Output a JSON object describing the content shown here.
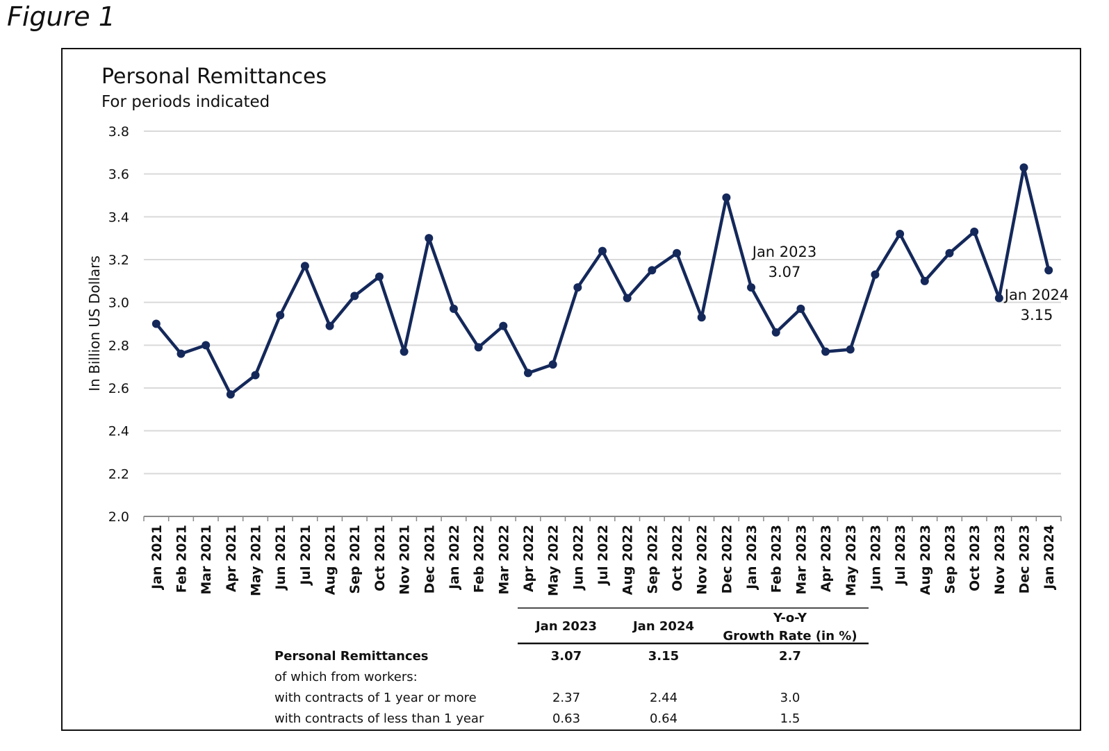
{
  "figure_label": "Figure 1",
  "chart_data": {
    "type": "line",
    "title": "Personal Remittances",
    "subtitle": "For periods indicated",
    "xlabel": "",
    "ylabel": "In Billion US Dollars",
    "ylim": [
      2.0,
      3.8
    ],
    "yticks": [
      "2.0",
      "2.2",
      "2.4",
      "2.6",
      "2.8",
      "3.0",
      "3.2",
      "3.4",
      "3.6",
      "3.8"
    ],
    "grid": true,
    "line_color": "#14285a",
    "categories": [
      "Jan 2021",
      "Feb 2021",
      "Mar 2021",
      "Apr 2021",
      "May 2021",
      "Jun 2021",
      "Jul 2021",
      "Aug 2021",
      "Sep 2021",
      "Oct 2021",
      "Nov 2021",
      "Dec 2021",
      "Jan 2022",
      "Feb 2022",
      "Mar 2022",
      "Apr 2022",
      "May 2022",
      "Jun 2022",
      "Jul 2022",
      "Aug 2022",
      "Sep 2022",
      "Oct 2022",
      "Nov 2022",
      "Dec 2022",
      "Jan 2023",
      "Feb 2023",
      "Mar 2023",
      "Apr 2023",
      "May 2023",
      "Jun 2023",
      "Jul 2023",
      "Aug 2023",
      "Sep 2023",
      "Oct 2023",
      "Nov 2023",
      "Dec 2023",
      "Jan 2024"
    ],
    "values": [
      2.9,
      2.76,
      2.8,
      2.57,
      2.66,
      2.94,
      3.17,
      2.89,
      3.03,
      3.12,
      2.77,
      3.3,
      2.97,
      2.79,
      2.89,
      2.67,
      2.71,
      3.07,
      3.24,
      3.02,
      3.15,
      3.23,
      2.93,
      3.49,
      3.07,
      2.86,
      2.97,
      2.77,
      2.78,
      3.13,
      3.32,
      3.1,
      3.23,
      3.33,
      3.02,
      3.63,
      3.15
    ],
    "annotations": [
      {
        "category": "Jan 2023",
        "line1": "Jan 2023",
        "line2": "3.07"
      },
      {
        "category": "Jan 2024",
        "line1": "Jan 2024",
        "line2": "3.15"
      }
    ]
  },
  "table": {
    "headers": [
      "Jan 2023",
      "Jan 2024",
      "Y-o-Y",
      "Growth Rate (in %)"
    ],
    "rows": [
      {
        "label": "Personal Remittances",
        "values": [
          "3.07",
          "3.15",
          "2.7"
        ],
        "bold": true
      },
      {
        "label": "of which from workers:",
        "values": [
          "",
          "",
          ""
        ],
        "bold": false
      },
      {
        "label": "with contracts of 1 year or more",
        "values": [
          "2.37",
          "2.44",
          "3.0"
        ],
        "bold": false
      },
      {
        "label": "with contracts of less than 1 year",
        "values": [
          "0.63",
          "0.64",
          "1.5"
        ],
        "bold": false
      }
    ]
  }
}
